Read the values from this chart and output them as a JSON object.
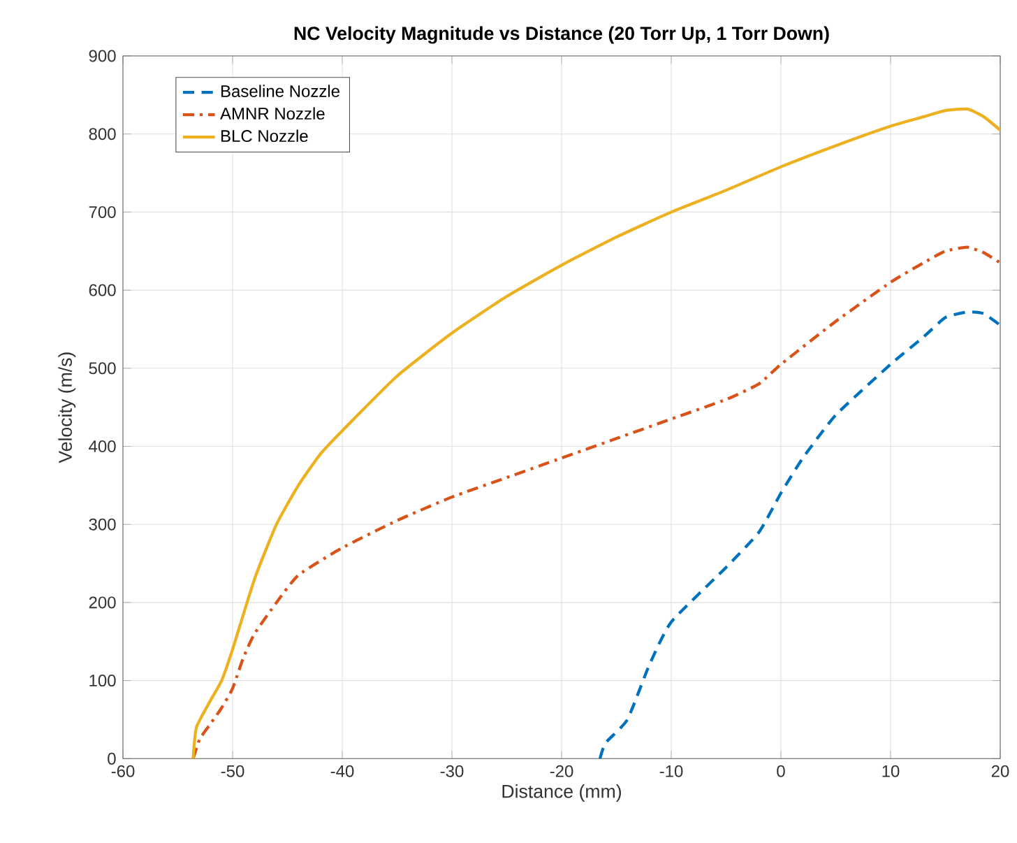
{
  "chart_data": {
    "type": "line",
    "title": "NC Velocity Magnitude vs Distance (20 Torr Up, 1 Torr Down)",
    "xlabel": "Distance (mm)",
    "ylabel": "Velocity (m/s)",
    "xlim": [
      -60,
      20
    ],
    "ylim": [
      0,
      900
    ],
    "xticks": [
      -60,
      -50,
      -40,
      -30,
      -20,
      -10,
      0,
      10,
      20
    ],
    "yticks": [
      0,
      100,
      200,
      300,
      400,
      500,
      600,
      700,
      800,
      900
    ],
    "grid": true,
    "legend": "top left",
    "marker": "none",
    "series": [
      {
        "name": "Baseline Nozzle",
        "color": "#0072bd",
        "line_style": "dashed",
        "x": [
          -16.5,
          -16,
          -14,
          -12,
          -10,
          -5,
          -2,
          0,
          2,
          5,
          10,
          13,
          15,
          17,
          18.5,
          20
        ],
        "values": [
          0,
          20,
          50,
          120,
          175,
          245,
          290,
          340,
          385,
          440,
          505,
          540,
          565,
          572,
          570,
          555
        ]
      },
      {
        "name": "AMNR Nozzle",
        "color": "#d95319",
        "line_style": "dashdot",
        "x": [
          -53.6,
          -53,
          -52,
          -51,
          -50,
          -49,
          -48,
          -46,
          -44,
          -40,
          -35,
          -30,
          -25,
          -20,
          -15,
          -10,
          -5,
          -2,
          0,
          5,
          10,
          13,
          15,
          17,
          18.5,
          20
        ],
        "values": [
          0,
          25,
          45,
          65,
          90,
          130,
          160,
          200,
          235,
          270,
          305,
          335,
          360,
          385,
          410,
          435,
          460,
          480,
          505,
          560,
          610,
          635,
          650,
          655,
          648,
          635
        ]
      },
      {
        "name": "BLC Nozzle",
        "color": "#edb120",
        "line_style": "solid",
        "x": [
          -53.6,
          -53.3,
          -52,
          -51,
          -50,
          -48,
          -46,
          -44,
          -42,
          -40,
          -35,
          -30,
          -25,
          -20,
          -15,
          -10,
          -5,
          0,
          5,
          10,
          13,
          15,
          17,
          18.5,
          20
        ],
        "values": [
          0,
          40,
          75,
          100,
          140,
          230,
          300,
          350,
          390,
          420,
          490,
          545,
          592,
          632,
          668,
          700,
          728,
          758,
          785,
          810,
          822,
          830,
          832,
          822,
          805
        ]
      }
    ]
  }
}
